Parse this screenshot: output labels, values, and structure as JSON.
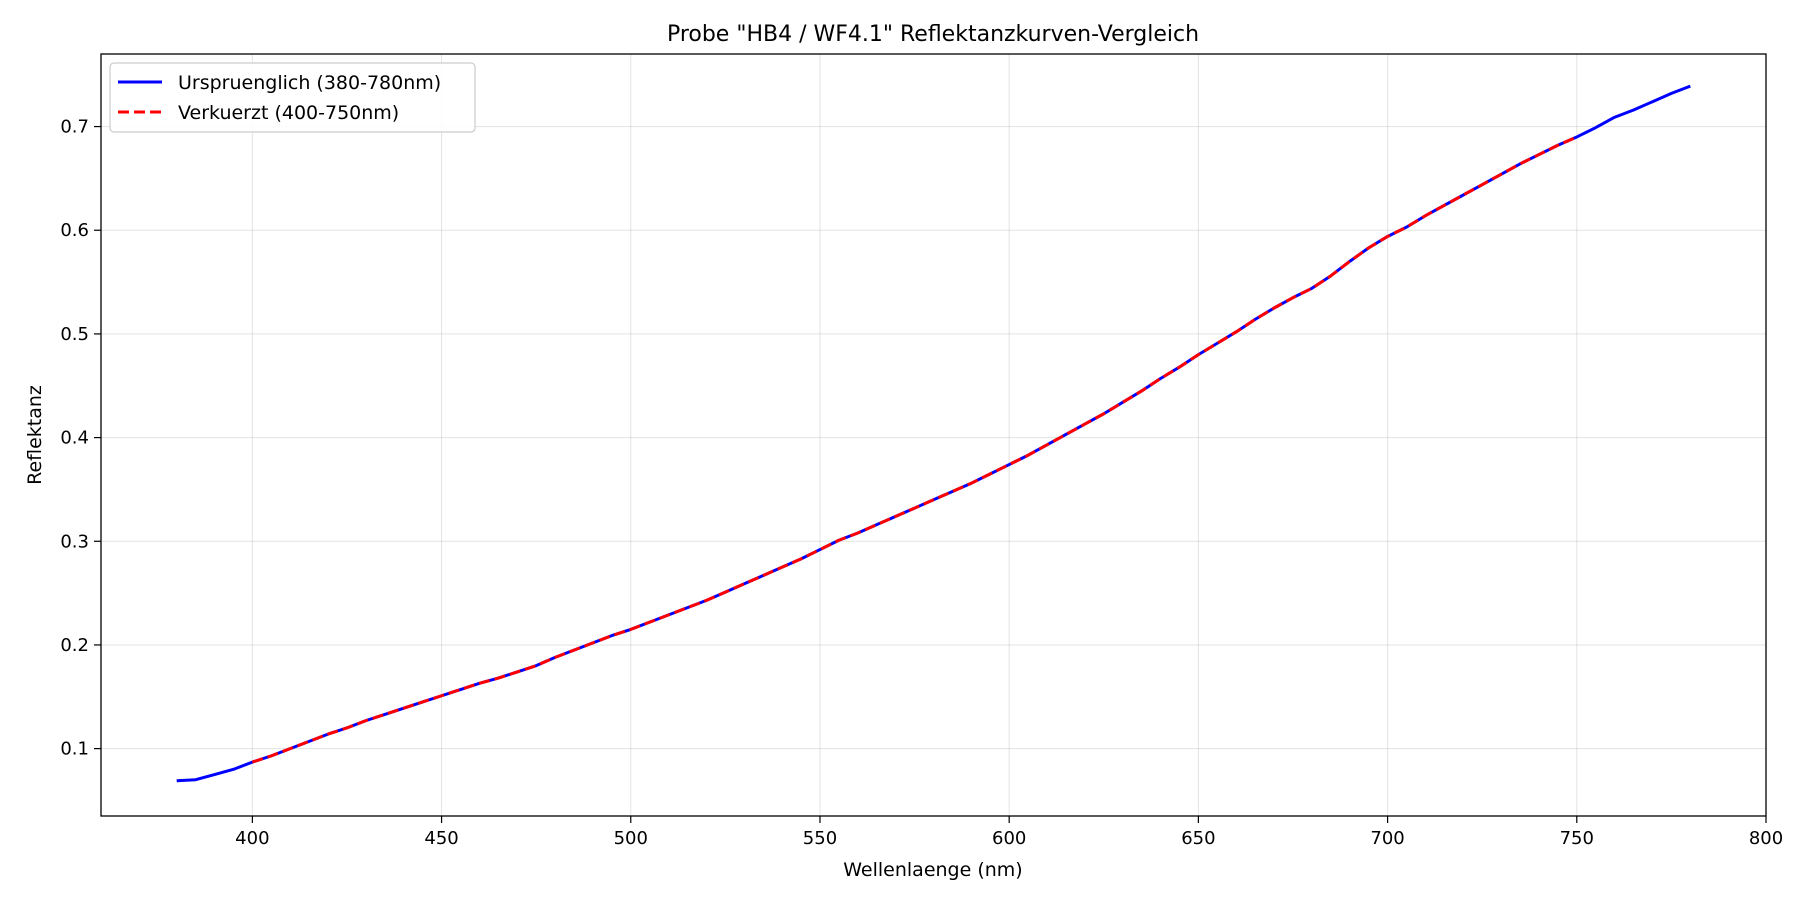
{
  "chart_data": {
    "type": "line",
    "title": "Probe \"HB4 / WF4.1\" Reflektanzkurven-Vergleich",
    "xlabel": "Wellenlaenge (nm)",
    "ylabel": "Reflektanz",
    "xlim": [
      360,
      800
    ],
    "ylim": [
      0.035,
      0.77
    ],
    "xticks": [
      400,
      450,
      500,
      550,
      600,
      650,
      700,
      750,
      800
    ],
    "yticks": [
      0.1,
      0.2,
      0.3,
      0.4,
      0.5,
      0.6,
      0.7
    ],
    "grid": true,
    "legend_position": "upper-left",
    "series": [
      {
        "name": "Urspruenglich (380-780nm)",
        "color": "#0000ff",
        "style": "solid",
        "x": [
          380,
          385,
          390,
          395,
          400,
          405,
          410,
          415,
          420,
          425,
          430,
          435,
          440,
          445,
          450,
          455,
          460,
          465,
          470,
          475,
          480,
          485,
          490,
          495,
          500,
          505,
          510,
          515,
          520,
          525,
          530,
          535,
          540,
          545,
          550,
          555,
          560,
          565,
          570,
          575,
          580,
          585,
          590,
          595,
          600,
          605,
          610,
          615,
          620,
          625,
          630,
          635,
          640,
          645,
          650,
          655,
          660,
          665,
          670,
          675,
          680,
          685,
          690,
          695,
          700,
          705,
          710,
          715,
          720,
          725,
          730,
          735,
          740,
          745,
          750,
          755,
          760,
          765,
          770,
          775,
          780
        ],
        "y": [
          0.069,
          0.07,
          0.075,
          0.08,
          0.087,
          0.093,
          0.1,
          0.107,
          0.114,
          0.12,
          0.127,
          0.133,
          0.139,
          0.145,
          0.151,
          0.157,
          0.163,
          0.168,
          0.174,
          0.18,
          0.188,
          0.195,
          0.202,
          0.209,
          0.215,
          0.222,
          0.229,
          0.236,
          0.243,
          0.251,
          0.259,
          0.267,
          0.275,
          0.283,
          0.292,
          0.301,
          0.308,
          0.316,
          0.324,
          0.332,
          0.34,
          0.348,
          0.356,
          0.365,
          0.374,
          0.383,
          0.393,
          0.403,
          0.413,
          0.423,
          0.434,
          0.445,
          0.457,
          0.468,
          0.48,
          0.491,
          0.502,
          0.514,
          0.525,
          0.535,
          0.544,
          0.556,
          0.57,
          0.583,
          0.594,
          0.603,
          0.614,
          0.624,
          0.634,
          0.644,
          0.654,
          0.664,
          0.673,
          0.682,
          0.69,
          0.699,
          0.709,
          0.716,
          0.724,
          0.732,
          0.739
        ]
      },
      {
        "name": "Verkuerzt (400-750nm)",
        "color": "#ff0000",
        "style": "dashed",
        "x": [
          400,
          405,
          410,
          415,
          420,
          425,
          430,
          435,
          440,
          445,
          450,
          455,
          460,
          465,
          470,
          475,
          480,
          485,
          490,
          495,
          500,
          505,
          510,
          515,
          520,
          525,
          530,
          535,
          540,
          545,
          550,
          555,
          560,
          565,
          570,
          575,
          580,
          585,
          590,
          595,
          600,
          605,
          610,
          615,
          620,
          625,
          630,
          635,
          640,
          645,
          650,
          655,
          660,
          665,
          670,
          675,
          680,
          685,
          690,
          695,
          700,
          705,
          710,
          715,
          720,
          725,
          730,
          735,
          740,
          745,
          750
        ],
        "y": [
          0.087,
          0.093,
          0.1,
          0.107,
          0.114,
          0.12,
          0.127,
          0.133,
          0.139,
          0.145,
          0.151,
          0.157,
          0.163,
          0.168,
          0.174,
          0.18,
          0.188,
          0.195,
          0.202,
          0.209,
          0.215,
          0.222,
          0.229,
          0.236,
          0.243,
          0.251,
          0.259,
          0.267,
          0.275,
          0.283,
          0.292,
          0.301,
          0.308,
          0.316,
          0.324,
          0.332,
          0.34,
          0.348,
          0.356,
          0.365,
          0.374,
          0.383,
          0.393,
          0.403,
          0.413,
          0.423,
          0.434,
          0.445,
          0.457,
          0.468,
          0.48,
          0.491,
          0.502,
          0.514,
          0.525,
          0.535,
          0.544,
          0.556,
          0.57,
          0.583,
          0.594,
          0.603,
          0.614,
          0.624,
          0.634,
          0.644,
          0.654,
          0.664,
          0.673,
          0.682,
          0.69
        ]
      }
    ]
  }
}
